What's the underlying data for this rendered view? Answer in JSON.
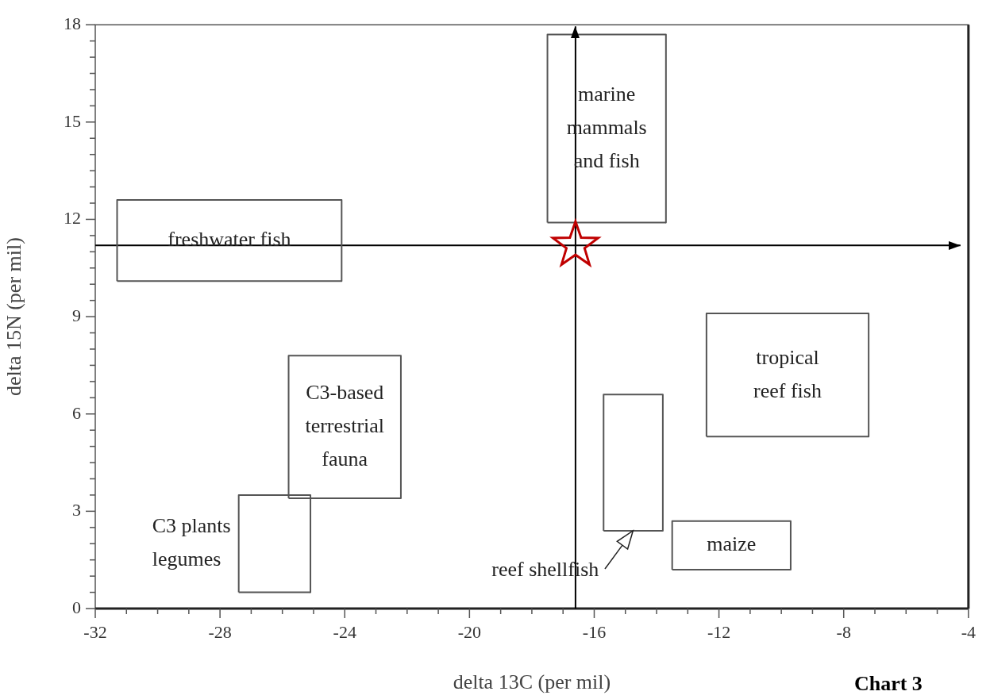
{
  "chart_data": {
    "type": "line",
    "xlabel": "delta 13C (per mil)",
    "ylabel": "delta 15N (per mil)",
    "xlim": [
      -32,
      -4
    ],
    "ylim": [
      0,
      18
    ],
    "xticks": [
      -32,
      {
        "value": -31,
        "label": null
      },
      {
        "value": -30,
        "label": null
      },
      {
        "value": -29,
        "label": null
      },
      -28,
      {
        "value": -27,
        "label": null
      },
      {
        "value": -26,
        "label": null
      },
      {
        "value": -25,
        "label": null
      },
      -24,
      {
        "value": -23,
        "label": null
      },
      {
        "value": -22,
        "label": null
      },
      {
        "value": -21,
        "label": null
      },
      -20,
      {
        "value": -19,
        "label": null
      },
      {
        "value": -18,
        "label": null
      },
      {
        "value": -17,
        "label": null
      },
      -16,
      {
        "value": -15,
        "label": null
      },
      {
        "value": -14,
        "label": null
      },
      {
        "value": -13,
        "label": null
      },
      -12,
      {
        "value": -11,
        "label": null
      },
      {
        "value": -10,
        "label": null
      },
      {
        "value": -9,
        "label": null
      },
      -8,
      {
        "value": -7,
        "label": null
      },
      {
        "value": -6,
        "label": null
      },
      {
        "value": -5,
        "label": null
      },
      -4
    ],
    "yticks": [
      0,
      {
        "value": 0.5,
        "label": null
      },
      {
        "value": 1,
        "label": null
      },
      {
        "value": 1.5,
        "label": null
      },
      {
        "value": 2,
        "label": null
      },
      {
        "value": 2.5,
        "label": null
      },
      3,
      {
        "value": 3.5,
        "label": null
      },
      {
        "value": 4,
        "label": null
      },
      {
        "value": 4.5,
        "label": null
      },
      {
        "value": 5,
        "label": null
      },
      {
        "value": 5.5,
        "label": null
      },
      6,
      {
        "value": 6.5,
        "label": null
      },
      {
        "value": 7,
        "label": null
      },
      {
        "value": 7.5,
        "label": null
      },
      {
        "value": 8,
        "label": null
      },
      {
        "value": 8.5,
        "label": null
      },
      9,
      {
        "value": 9.5,
        "label": null
      },
      {
        "value": 10,
        "label": null
      },
      {
        "value": 10.5,
        "label": null
      },
      {
        "value": 11,
        "label": null
      },
      {
        "value": 11.5,
        "label": null
      },
      12,
      {
        "value": 12.5,
        "label": null
      },
      {
        "value": 13,
        "label": null
      },
      {
        "value": 13.5,
        "label": null
      },
      {
        "value": 14,
        "label": null
      },
      {
        "value": 14.5,
        "label": null
      },
      15,
      {
        "value": 15.5,
        "label": null
      },
      {
        "value": 16,
        "label": null
      },
      {
        "value": 16.5,
        "label": null
      },
      {
        "value": 17,
        "label": null
      },
      {
        "value": 17.5,
        "label": null
      },
      18
    ],
    "grid": false,
    "legend": false,
    "marker": "none",
    "line_style": "solid",
    "ref_lines": [
      {
        "axis": "x",
        "value": -16.6,
        "color": "#000000"
      },
      {
        "axis": "y",
        "value": 11.2,
        "color": "#000000"
      }
    ],
    "annotations": [
      "Chart 3"
    ],
    "series": [
      {
        "name": "marine mammals and fish",
        "color": "#555555",
        "x": [
          -17.5,
          -17.5,
          -13.7,
          -13.7
        ],
        "values": [
          11.9,
          17.7,
          17.7,
          11.9
        ]
      },
      {
        "name": "freshwater fish",
        "color": "#555555",
        "x": [
          -31.3,
          -31.3,
          -24.1,
          -24.1
        ],
        "values": [
          10.1,
          12.6,
          12.6,
          10.1
        ]
      },
      {
        "name": "C3-based terrestrial fauna",
        "color": "#555555",
        "x": [
          -25.8,
          -25.8,
          -22.2,
          -22.2
        ],
        "values": [
          3.4,
          7.8,
          7.8,
          3.4
        ]
      },
      {
        "name": "C3 plants legumes",
        "color": "#555555",
        "x": [
          -27.4,
          -27.4,
          -25.1,
          -25.1
        ],
        "values": [
          0.5,
          3.5,
          3.5,
          0.5
        ]
      },
      {
        "name": "reef shellfish",
        "color": "#555555",
        "x": [
          -15.7,
          -15.7,
          -13.8,
          -13.8
        ],
        "values": [
          2.4,
          6.6,
          6.6,
          2.4
        ]
      },
      {
        "name": "maize",
        "color": "#555555",
        "x": [
          -13.5,
          -13.5,
          -9.7,
          -9.7
        ],
        "values": [
          1.2,
          2.7,
          2.7,
          1.2
        ]
      },
      {
        "name": "tropical reef fish",
        "color": "#555555",
        "x": [
          -12.4,
          -12.4,
          -7.2,
          -7.2
        ],
        "values": [
          5.3,
          9.1,
          9.1,
          5.3
        ]
      },
      {
        "color": "#555555",
        "x": [
          -17.5,
          -13.7
        ],
        "values": [
          11.9,
          11.9
        ]
      },
      {
        "color": "#555555",
        "x": [
          -31.3,
          -24.1
        ],
        "values": [
          10.1,
          10.1
        ]
      },
      {
        "color": "#555555",
        "x": [
          -25.8,
          -22.2
        ],
        "values": [
          3.4,
          3.4
        ]
      },
      {
        "color": "#555555",
        "x": [
          -27.4,
          -25.1
        ],
        "values": [
          0.5,
          0.5
        ]
      },
      {
        "color": "#555555",
        "x": [
          -15.7,
          -13.8
        ],
        "values": [
          2.4,
          2.4
        ]
      },
      {
        "color": "#555555",
        "x": [
          -13.5,
          -9.7
        ],
        "values": [
          1.2,
          1.2
        ]
      },
      {
        "color": "#555555",
        "x": [
          -12.4,
          -7.2
        ],
        "values": [
          5.3,
          5.3
        ]
      },
      {
        "type": "scatter",
        "marker": "star",
        "color": "#c00000",
        "x": [
          -16.6
        ],
        "values": [
          11.2
        ]
      }
    ]
  }
}
